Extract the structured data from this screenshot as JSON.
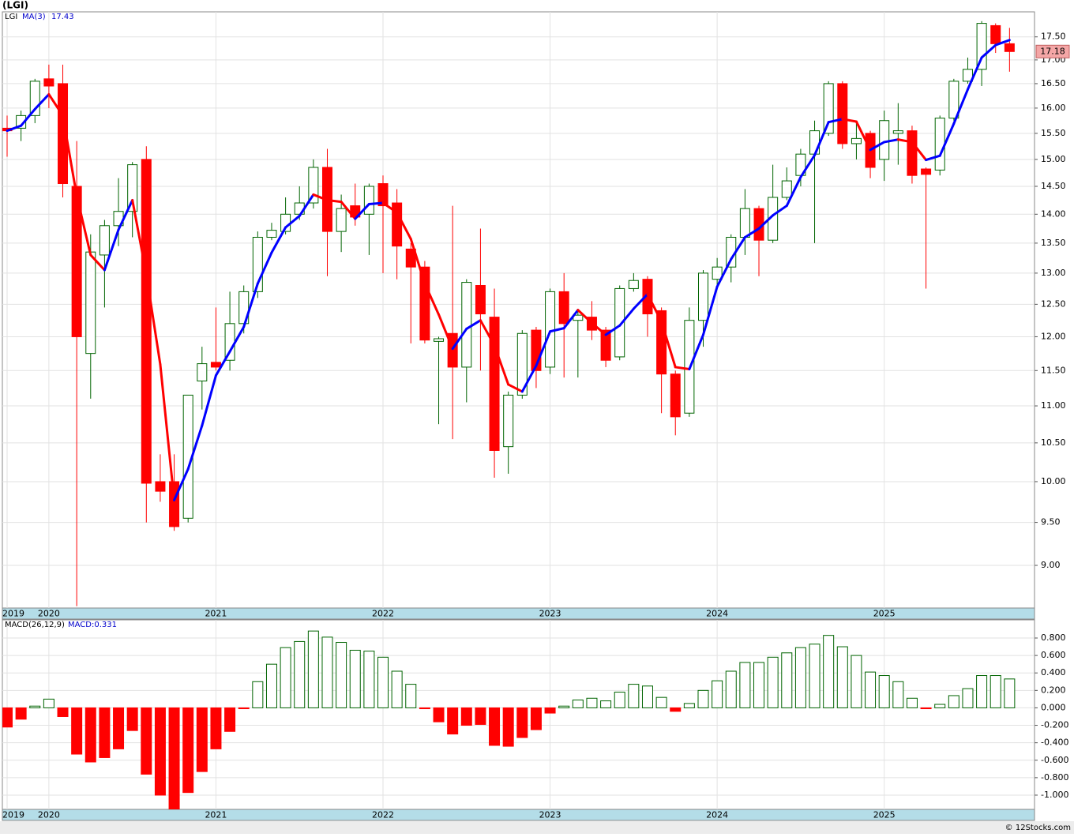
{
  "chart_data": [
    {
      "type": "candlestick",
      "title": "(LGI)",
      "name": "LGI",
      "categories": [
        "2019",
        null,
        null,
        "2020",
        null,
        null,
        null,
        null,
        null,
        null,
        null,
        null,
        null,
        null,
        null,
        "2021",
        null,
        null,
        null,
        null,
        null,
        null,
        null,
        null,
        null,
        null,
        null,
        "2022",
        null,
        null,
        null,
        null,
        null,
        null,
        null,
        null,
        null,
        null,
        null,
        "2023",
        null,
        null,
        null,
        null,
        null,
        null,
        null,
        null,
        null,
        null,
        null,
        "2024",
        null,
        null,
        null,
        null,
        null,
        null,
        null,
        null,
        null,
        null,
        null,
        "2025",
        null,
        null,
        null,
        null,
        null,
        null,
        null,
        null,
        null
      ],
      "open": [
        15.6,
        15.6,
        15.85,
        16.6,
        16.5,
        14.5,
        11.75,
        13.3,
        13.8,
        14.05,
        15.0,
        10.0,
        10.0,
        9.55,
        11.35,
        11.62,
        11.65,
        12.2,
        12.7,
        13.6,
        13.7,
        14.0,
        14.2,
        14.85,
        13.7,
        14.15,
        14.0,
        14.55,
        14.2,
        13.4,
        13.1,
        11.93,
        12.05,
        11.55,
        12.8,
        12.3,
        10.45,
        11.15,
        12.1,
        11.55,
        12.7,
        12.25,
        12.3,
        12.1,
        11.7,
        12.75,
        12.9,
        12.4,
        11.45,
        10.9,
        12.25,
        12.9,
        13.1,
        13.6,
        14.1,
        13.55,
        14.3,
        14.7,
        15.1,
        15.5,
        16.5,
        15.3,
        15.5,
        15.0,
        15.5,
        15.55,
        14.82,
        14.8,
        15.8,
        16.55,
        16.8,
        17.75,
        17.35
      ],
      "high": [
        15.85,
        15.95,
        16.6,
        16.9,
        16.9,
        15.35,
        13.65,
        13.9,
        14.65,
        14.95,
        15.25,
        10.35,
        10.35,
        11.15,
        11.85,
        12.45,
        12.7,
        12.8,
        13.7,
        13.85,
        14.3,
        14.5,
        15.0,
        15.2,
        14.35,
        14.55,
        14.55,
        14.7,
        14.45,
        13.5,
        13.2,
        12.0,
        14.15,
        12.9,
        13.75,
        12.75,
        11.2,
        12.1,
        12.15,
        12.75,
        13.0,
        12.4,
        12.55,
        12.15,
        12.8,
        13.0,
        12.95,
        12.45,
        11.5,
        12.45,
        13.05,
        13.25,
        13.65,
        14.45,
        14.15,
        14.9,
        14.85,
        15.2,
        15.75,
        16.55,
        16.55,
        15.7,
        15.55,
        15.95,
        16.1,
        15.65,
        14.85,
        15.85,
        16.6,
        17.05,
        17.85,
        17.8,
        17.7
      ],
      "low": [
        15.05,
        15.35,
        15.7,
        16.0,
        14.3,
        8.55,
        11.1,
        12.45,
        13.45,
        13.6,
        9.5,
        9.75,
        9.4,
        9.5,
        10.95,
        11.5,
        11.5,
        12.05,
        12.6,
        13.55,
        13.65,
        13.9,
        14.1,
        12.95,
        13.35,
        13.8,
        13.3,
        13.0,
        12.9,
        11.9,
        11.9,
        10.75,
        10.55,
        11.05,
        11.5,
        10.05,
        10.1,
        11.1,
        11.25,
        11.45,
        11.4,
        11.4,
        11.95,
        11.55,
        11.65,
        12.7,
        12.0,
        10.9,
        10.6,
        10.85,
        11.85,
        12.8,
        12.85,
        13.3,
        12.95,
        13.5,
        14.25,
        14.5,
        13.5,
        15.45,
        15.2,
        15.0,
        14.65,
        14.6,
        14.9,
        14.55,
        12.75,
        14.7,
        15.75,
        16.5,
        16.45,
        17.15,
        16.75
      ],
      "close": [
        15.55,
        15.85,
        16.55,
        16.45,
        14.55,
        12.0,
        13.35,
        13.8,
        14.05,
        14.9,
        9.98,
        9.88,
        9.45,
        11.15,
        11.6,
        11.55,
        12.2,
        12.7,
        13.6,
        13.72,
        14.0,
        14.2,
        14.85,
        13.7,
        14.1,
        13.95,
        14.5,
        14.15,
        13.45,
        13.1,
        11.95,
        11.97,
        11.55,
        12.85,
        12.35,
        10.4,
        11.15,
        12.05,
        11.5,
        12.7,
        12.2,
        12.33,
        12.1,
        11.65,
        12.75,
        12.88,
        12.35,
        11.45,
        10.85,
        12.25,
        13.0,
        13.1,
        13.6,
        14.1,
        13.55,
        14.3,
        14.6,
        15.1,
        15.55,
        16.5,
        15.3,
        15.4,
        14.85,
        15.75,
        15.55,
        14.7,
        14.72,
        15.8,
        16.55,
        16.8,
        17.8,
        17.35,
        17.18
      ],
      "up_color": "#006400",
      "down_color": "#ff0000",
      "ma": {
        "name": "MA(3)",
        "last": 17.43,
        "rise_color": "#0000ff",
        "fall_color": "#ff0000",
        "values": [
          15.55,
          15.65,
          15.98,
          16.28,
          15.85,
          14.33,
          13.3,
          13.05,
          13.73,
          14.25,
          12.98,
          11.59,
          9.77,
          10.16,
          10.73,
          11.43,
          11.78,
          12.15,
          12.83,
          13.34,
          13.77,
          13.97,
          14.35,
          14.25,
          14.22,
          13.92,
          14.18,
          14.2,
          14.03,
          13.57,
          12.83,
          12.34,
          11.82,
          12.12,
          12.25,
          11.87,
          11.3,
          11.2,
          11.57,
          12.08,
          12.13,
          12.41,
          12.21,
          12.03,
          12.17,
          12.43,
          12.66,
          12.23,
          11.55,
          11.52,
          12.03,
          12.78,
          13.23,
          13.6,
          13.75,
          13.98,
          14.15,
          14.67,
          15.08,
          15.72,
          15.78,
          15.73,
          15.18,
          15.33,
          15.38,
          15.33,
          14.99,
          15.07,
          15.69,
          16.38,
          17.05,
          17.32,
          17.43
        ]
      },
      "ylim": [
        8.53,
        18.06
      ],
      "log_scale": true,
      "grid": true,
      "yticks": [
        {
          "value": 9,
          "label": "9.00"
        },
        {
          "value": 9.5,
          "label": "9.50"
        },
        {
          "value": 10,
          "label": "10.00"
        },
        {
          "value": 10.5,
          "label": "10.50"
        },
        {
          "value": 11,
          "label": "11.00"
        },
        {
          "value": 11.5,
          "label": "11.50"
        },
        {
          "value": 12,
          "label": "12.00"
        },
        {
          "value": 12.5,
          "label": "12.50"
        },
        {
          "value": 13,
          "label": "13.00"
        },
        {
          "value": 13.5,
          "label": "13.50"
        },
        {
          "value": 14,
          "label": "14.00"
        },
        {
          "value": 14.5,
          "label": "14.50"
        },
        {
          "value": 15,
          "label": "15.00"
        },
        {
          "value": 15.5,
          "label": "15.50"
        },
        {
          "value": 16,
          "label": "16.00"
        },
        {
          "value": 16.5,
          "label": "16.50"
        },
        {
          "value": 17,
          "label": "17.00"
        },
        {
          "value": 17.5,
          "label": "17.50"
        }
      ]
    },
    {
      "type": "bar",
      "name": "MACD(26,12,9)",
      "label": "MACD:0.331",
      "categories": [
        "2019",
        null,
        null,
        "2020",
        null,
        null,
        null,
        null,
        null,
        null,
        null,
        null,
        null,
        null,
        null,
        "2021",
        null,
        null,
        null,
        null,
        null,
        null,
        null,
        null,
        null,
        null,
        null,
        "2022",
        null,
        null,
        null,
        null,
        null,
        null,
        null,
        null,
        null,
        null,
        null,
        "2023",
        null,
        null,
        null,
        null,
        null,
        null,
        null,
        null,
        null,
        null,
        null,
        "2024",
        null,
        null,
        null,
        null,
        null,
        null,
        null,
        null,
        null,
        null,
        null,
        "2025",
        null,
        null,
        null,
        null,
        null,
        null,
        null,
        null,
        null
      ],
      "values": [
        -0.22,
        -0.13,
        0.02,
        0.1,
        -0.1,
        -0.53,
        -0.62,
        -0.57,
        -0.47,
        -0.26,
        -0.76,
        -1.0,
        -1.16,
        -0.97,
        -0.73,
        -0.47,
        -0.27,
        -0.01,
        0.3,
        0.5,
        0.69,
        0.76,
        0.88,
        0.81,
        0.75,
        0.66,
        0.65,
        0.58,
        0.42,
        0.27,
        -0.01,
        -0.16,
        -0.3,
        -0.2,
        -0.19,
        -0.43,
        -0.44,
        -0.34,
        -0.25,
        -0.06,
        0.02,
        0.09,
        0.11,
        0.08,
        0.18,
        0.27,
        0.25,
        0.12,
        -0.04,
        0.05,
        0.2,
        0.31,
        0.42,
        0.52,
        0.52,
        0.58,
        0.63,
        0.69,
        0.73,
        0.83,
        0.7,
        0.6,
        0.41,
        0.37,
        0.3,
        0.11,
        -0.01,
        0.04,
        0.14,
        0.22,
        0.37,
        0.37,
        0.331
      ],
      "positive_color": "#006400",
      "negative_color": "#ff0000",
      "ylim": [
        -1.163,
        1.008
      ],
      "grid": true,
      "yticks": [
        {
          "value": 0.8,
          "label": "0.800"
        },
        {
          "value": 0.6,
          "label": "0.600"
        },
        {
          "value": 0.4,
          "label": "0.400"
        },
        {
          "value": 0.2,
          "label": "0.200"
        },
        {
          "value": 0,
          "label": "0.000"
        },
        {
          "value": -0.2,
          "label": "-0.200"
        },
        {
          "value": -0.4,
          "label": "-0.400"
        },
        {
          "value": -0.6,
          "label": "-0.600"
        },
        {
          "value": -0.8,
          "label": "-0.800"
        },
        {
          "value": -1,
          "label": "-1.000"
        }
      ]
    }
  ],
  "footer": "© 12Stocks.com"
}
